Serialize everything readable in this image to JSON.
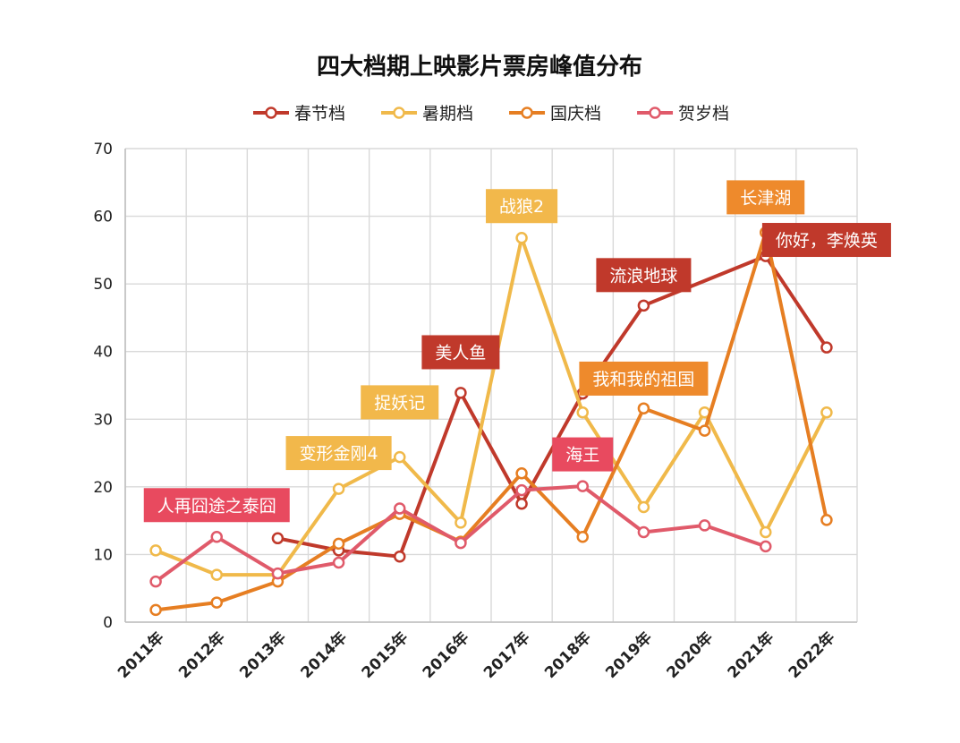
{
  "chart_data": {
    "type": "line",
    "title": "四大档期上映影片票房峰值分布",
    "xlabel": "",
    "ylabel": "",
    "ylim": [
      0,
      70
    ],
    "yticks": [
      0,
      10,
      20,
      30,
      40,
      50,
      60,
      70
    ],
    "grid": true,
    "legend_position": "top-center",
    "categories": [
      "2011年",
      "2012年",
      "2013年",
      "2014年",
      "2015年",
      "2016年",
      "2017年",
      "2018年",
      "2019年",
      "2020年",
      "2021年",
      "2022年"
    ],
    "series": [
      {
        "name": "春节档",
        "color": "#c0392b",
        "points": [
          {
            "x": "2013年",
            "y": 12.4
          },
          {
            "x": "2014年",
            "y": 10.6
          },
          {
            "x": "2015年",
            "y": 9.7
          },
          {
            "x": "2016年",
            "y": 33.9
          },
          {
            "x": "2017年",
            "y": 17.5
          },
          {
            "x": "2018年",
            "y": 33.8
          },
          {
            "x": "2019年",
            "y": 46.8
          },
          {
            "x": "2021年",
            "y": 54.1
          },
          {
            "x": "2022年",
            "y": 40.6
          }
        ]
      },
      {
        "name": "暑期档",
        "color": "#f0b94a",
        "points": [
          {
            "x": "2011年",
            "y": 10.6
          },
          {
            "x": "2012年",
            "y": 7.0
          },
          {
            "x": "2013年",
            "y": 7.0
          },
          {
            "x": "2014年",
            "y": 19.7
          },
          {
            "x": "2015年",
            "y": 24.4
          },
          {
            "x": "2016年",
            "y": 14.7
          },
          {
            "x": "2017年",
            "y": 56.8
          },
          {
            "x": "2018年",
            "y": 31.0
          },
          {
            "x": "2019年",
            "y": 17.0
          },
          {
            "x": "2020年",
            "y": 31.0
          },
          {
            "x": "2021年",
            "y": 13.3
          },
          {
            "x": "2022年",
            "y": 31.0
          }
        ]
      },
      {
        "name": "国庆档",
        "color": "#e67e22",
        "points": [
          {
            "x": "2011年",
            "y": 1.8
          },
          {
            "x": "2012年",
            "y": 2.9
          },
          {
            "x": "2013年",
            "y": 6.0
          },
          {
            "x": "2014年",
            "y": 11.6
          },
          {
            "x": "2015年",
            "y": 16.0
          },
          {
            "x": "2016年",
            "y": 11.9
          },
          {
            "x": "2017年",
            "y": 22.0
          },
          {
            "x": "2018年",
            "y": 12.6
          },
          {
            "x": "2019年",
            "y": 31.6
          },
          {
            "x": "2020年",
            "y": 28.3
          },
          {
            "x": "2021年",
            "y": 57.6
          },
          {
            "x": "2022年",
            "y": 15.1
          }
        ]
      },
      {
        "name": "贺岁档",
        "color": "#e05a6a",
        "points": [
          {
            "x": "2011年",
            "y": 6.0
          },
          {
            "x": "2012年",
            "y": 12.6
          },
          {
            "x": "2013年",
            "y": 7.2
          },
          {
            "x": "2014年",
            "y": 8.8
          },
          {
            "x": "2015年",
            "y": 16.8
          },
          {
            "x": "2016年",
            "y": 11.7
          },
          {
            "x": "2017年",
            "y": 19.5
          },
          {
            "x": "2018年",
            "y": 20.1
          },
          {
            "x": "2019年",
            "y": 13.3
          },
          {
            "x": "2020年",
            "y": 14.3
          },
          {
            "x": "2021年",
            "y": 11.2
          }
        ]
      }
    ],
    "annotations": [
      {
        "text": "人再囧途之泰囧",
        "series": "贺岁档",
        "x": "2012年",
        "y": 17.3,
        "color": "#e84a5f"
      },
      {
        "text": "变形金刚4",
        "series": "暑期档",
        "x": "2014年",
        "y": 25.0,
        "color": "#f2b84b"
      },
      {
        "text": "捉妖记",
        "series": "暑期档",
        "x": "2015年",
        "y": 32.5,
        "color": "#f2b84b"
      },
      {
        "text": "美人鱼",
        "series": "春节档",
        "x": "2016年",
        "y": 39.9,
        "color": "#c0392b"
      },
      {
        "text": "战狼2",
        "series": "暑期档",
        "x": "2017年",
        "y": 61.5,
        "color": "#f2b84b"
      },
      {
        "text": "海王",
        "series": "贺岁档",
        "x": "2018年",
        "y": 24.8,
        "color": "#e84a5f"
      },
      {
        "text": "流浪地球",
        "series": "春节档",
        "x": "2019年",
        "y": 51.3,
        "color": "#c0392b"
      },
      {
        "text": "我和我的祖国",
        "series": "国庆档",
        "x": "2019年",
        "y": 36.0,
        "color": "#ee8a2c"
      },
      {
        "text": "长津湖",
        "series": "国庆档",
        "x": "2021年",
        "y": 62.8,
        "color": "#ee8a2c"
      },
      {
        "text": "你好，李焕英",
        "series": "春节档",
        "x": "2022年",
        "y": 56.5,
        "color": "#c0392b"
      }
    ]
  }
}
